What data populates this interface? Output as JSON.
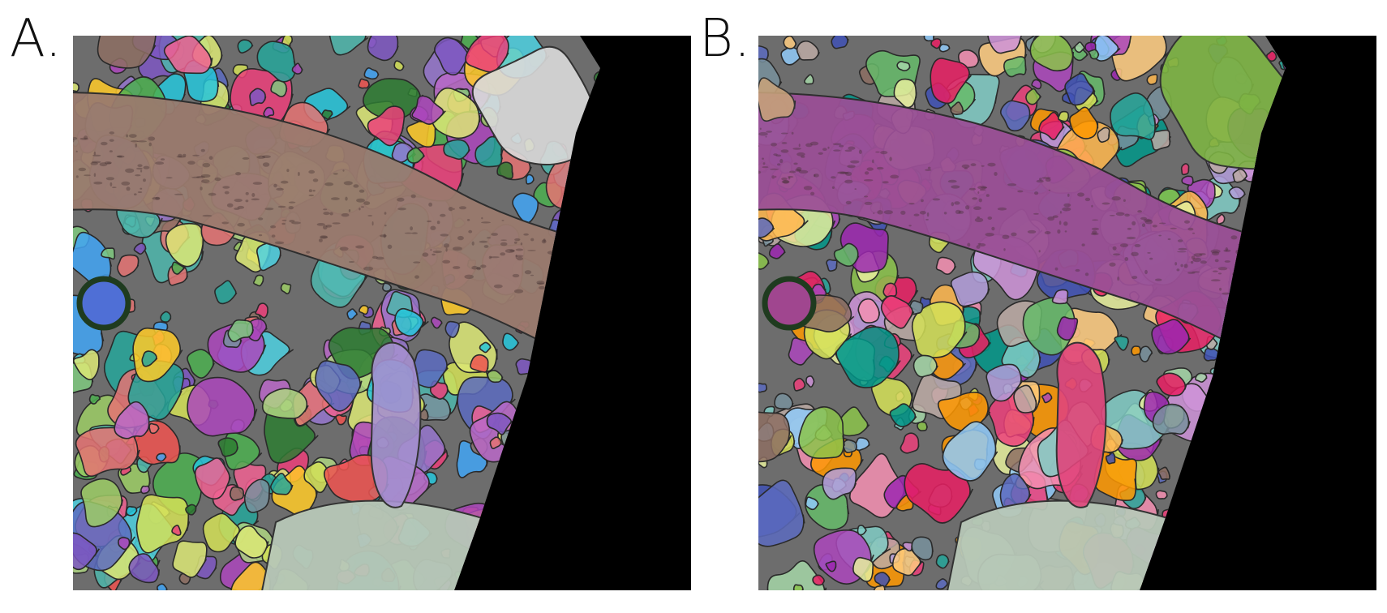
{
  "panels": [
    {
      "label": "A.",
      "name": "panel-a",
      "segment_palette": "multicolor",
      "large_process_color": "#9a7a6e"
    },
    {
      "label": "B.",
      "name": "panel-b",
      "segment_palette": "multicolor",
      "large_process_color": "#9a4f96"
    }
  ],
  "colors": {
    "background": "#ffffff",
    "out_of_volume": "#000000"
  }
}
